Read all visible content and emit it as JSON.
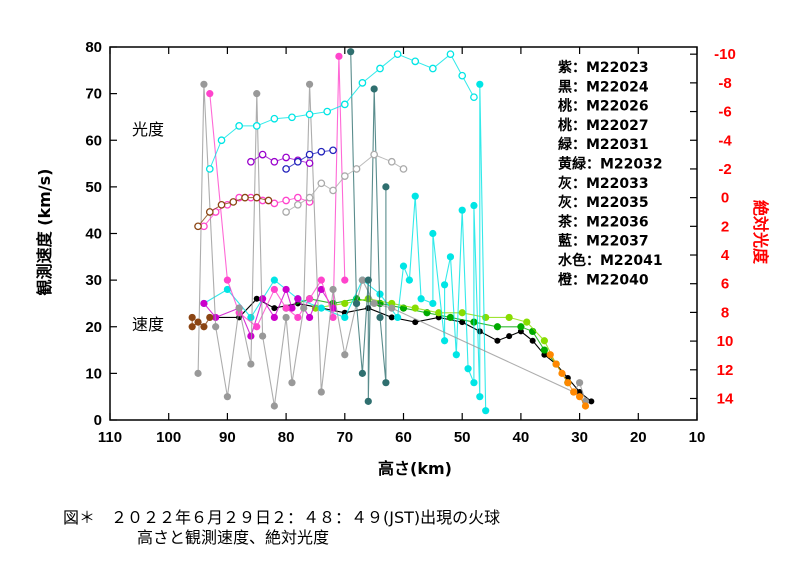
{
  "chart_data": {
    "type": "scatter",
    "xlabel": "高さ(km)",
    "ylabel": "観測速度 (km/s)",
    "y2label": "絶対光度",
    "xlim": [
      110,
      10
    ],
    "ylim": [
      0,
      80
    ],
    "y2lim": [
      15.5,
      -10.5
    ],
    "xticks": [
      "110",
      "100",
      "90",
      "80",
      "70",
      "60",
      "50",
      "40",
      "30",
      "20",
      "10"
    ],
    "yticks": [
      "0",
      "10",
      "20",
      "30",
      "40",
      "50",
      "60",
      "70",
      "80"
    ],
    "y2ticks": [
      "-10",
      "-8",
      "-6",
      "-4",
      "-2",
      "0",
      "2",
      "4",
      "6",
      "8",
      "10",
      "12",
      "14"
    ],
    "annotations": {
      "brightness": "光度",
      "speed": "速度"
    },
    "legend": [
      {
        "label": "紫：M22023",
        "color": "#cc00cc"
      },
      {
        "label": "黒：M22024",
        "color": "#000000"
      },
      {
        "label": "桃：M22026",
        "color": "#ff44cc"
      },
      {
        "label": "桃：M22027",
        "color": "#ff44cc"
      },
      {
        "label": "緑：M22031",
        "color": "#00aa00"
      },
      {
        "label": "黄緑：M22032",
        "color": "#88dd00"
      },
      {
        "label": "灰：M22033",
        "color": "#999999"
      },
      {
        "label": "灰：M22035",
        "color": "#aaaaaa"
      },
      {
        "label": "茶：M22036",
        "color": "#8b4513"
      },
      {
        "label": "藍：M22037",
        "color": "#2f6f6f"
      },
      {
        "label": "水色：M22041",
        "color": "#00e5e5"
      },
      {
        "label": "橙：M22040",
        "color": "#ff8800"
      }
    ],
    "series": [
      {
        "name": "M22024 速度 (黒)",
        "kind": "speed",
        "color": "#000000",
        "points": [
          [
            92,
            22
          ],
          [
            88,
            22
          ],
          [
            85,
            26
          ],
          [
            82,
            24
          ],
          [
            78,
            25
          ],
          [
            74,
            24
          ],
          [
            70,
            23
          ],
          [
            66,
            24
          ],
          [
            62,
            22
          ],
          [
            58,
            21
          ],
          [
            54,
            22
          ],
          [
            50,
            21
          ],
          [
            47,
            19
          ],
          [
            44,
            17
          ],
          [
            42,
            18
          ],
          [
            40,
            19
          ],
          [
            38,
            17
          ],
          [
            36,
            14
          ],
          [
            34,
            12
          ],
          [
            32,
            9
          ],
          [
            30,
            6
          ],
          [
            28,
            4
          ]
        ]
      },
      {
        "name": "M22031 速度 (緑)",
        "kind": "speed",
        "color": "#00aa00",
        "points": [
          [
            80,
            24
          ],
          [
            76,
            26
          ],
          [
            72,
            25
          ],
          [
            68,
            26
          ],
          [
            64,
            25
          ],
          [
            60,
            24
          ],
          [
            56,
            23
          ],
          [
            52,
            22
          ],
          [
            48,
            21
          ],
          [
            44,
            20
          ],
          [
            40,
            20
          ],
          [
            38,
            19
          ],
          [
            36,
            15
          ],
          [
            34,
            12
          ],
          [
            32,
            8
          ]
        ]
      },
      {
        "name": "M22032 速度 (黄緑)",
        "kind": "speed",
        "color": "#88dd00",
        "points": [
          [
            75,
            24
          ],
          [
            70,
            25
          ],
          [
            66,
            26
          ],
          [
            62,
            25
          ],
          [
            58,
            24
          ],
          [
            54,
            23
          ],
          [
            50,
            23
          ],
          [
            46,
            22
          ],
          [
            42,
            22
          ],
          [
            39,
            21
          ],
          [
            36,
            17
          ],
          [
            34,
            12
          ]
        ]
      },
      {
        "name": "M22041 速度 (水色)",
        "kind": "speed",
        "color": "#00e5e5",
        "points": [
          [
            94,
            25
          ],
          [
            90,
            28
          ],
          [
            86,
            22
          ],
          [
            82,
            30
          ],
          [
            78,
            26
          ],
          [
            74,
            24
          ],
          [
            70,
            22
          ],
          [
            67,
            30
          ],
          [
            64,
            27
          ],
          [
            61,
            22
          ],
          [
            59,
            30
          ],
          [
            57,
            26
          ],
          [
            55,
            25
          ],
          [
            53,
            17
          ],
          [
            51,
            14
          ],
          [
            49,
            11
          ],
          [
            48,
            8
          ],
          [
            47,
            5
          ],
          [
            46,
            2
          ],
          [
            58,
            48
          ],
          [
            55,
            40
          ],
          [
            52,
            35
          ],
          [
            50,
            45
          ],
          [
            48,
            46
          ],
          [
            47,
            72
          ],
          [
            53,
            29
          ],
          [
            60,
            33
          ]
        ]
      },
      {
        "name": "M22023 速度 (紫)",
        "kind": "speed",
        "color": "#cc00cc",
        "points": [
          [
            94,
            25
          ],
          [
            92,
            22
          ],
          [
            88,
            24
          ],
          [
            86,
            18
          ],
          [
            84,
            26
          ],
          [
            82,
            22
          ],
          [
            80,
            28
          ],
          [
            79,
            24
          ],
          [
            78,
            26
          ],
          [
            76,
            22
          ],
          [
            74,
            28
          ],
          [
            72,
            24
          ]
        ]
      },
      {
        "name": "M22026/M22027 速度 (桃)",
        "kind": "speed",
        "color": "#ff44cc",
        "points": [
          [
            93,
            70
          ],
          [
            90,
            30
          ],
          [
            88,
            23
          ],
          [
            85,
            20
          ],
          [
            82,
            28
          ],
          [
            80,
            24
          ],
          [
            78,
            22
          ],
          [
            76,
            26
          ],
          [
            74,
            30
          ],
          [
            72,
            22
          ],
          [
            71,
            78
          ],
          [
            70,
            30
          ]
        ]
      },
      {
        "name": "M22033/M22035 速度 (灰)",
        "kind": "speed",
        "color": "#999999",
        "points": [
          [
            95,
            10
          ],
          [
            94,
            72
          ],
          [
            92,
            20
          ],
          [
            90,
            5
          ],
          [
            88,
            24
          ],
          [
            86,
            12
          ],
          [
            85,
            70
          ],
          [
            84,
            18
          ],
          [
            82,
            3
          ],
          [
            80,
            22
          ],
          [
            79,
            8
          ],
          [
            77,
            24
          ],
          [
            76,
            72
          ],
          [
            74,
            6
          ],
          [
            72,
            28
          ],
          [
            70,
            14
          ],
          [
            68,
            25
          ],
          [
            67,
            30
          ],
          [
            65,
            25
          ],
          [
            62,
            24
          ],
          [
            30,
            8
          ],
          [
            29,
            4
          ],
          [
            31,
            6
          ]
        ]
      },
      {
        "name": "M22036 速度 (茶)",
        "kind": "speed",
        "color": "#8b4513",
        "points": [
          [
            96,
            22
          ],
          [
            95,
            21
          ],
          [
            94,
            20
          ],
          [
            93,
            22
          ],
          [
            96,
            20
          ]
        ]
      },
      {
        "name": "M22037 速度 (藍)",
        "kind": "speed",
        "color": "#2f6f6f",
        "points": [
          [
            69,
            79
          ],
          [
            68,
            25
          ],
          [
            67,
            10
          ],
          [
            66,
            30
          ],
          [
            65,
            71
          ],
          [
            64,
            22
          ],
          [
            63,
            8
          ],
          [
            63,
            50
          ],
          [
            66,
            4
          ]
        ]
      },
      {
        "name": "M22040 速度 (橙)",
        "kind": "speed",
        "color": "#ff8800",
        "points": [
          [
            35,
            14
          ],
          [
            34,
            12
          ],
          [
            33,
            10
          ],
          [
            32,
            8
          ],
          [
            31,
            6
          ],
          [
            30,
            5
          ],
          [
            29,
            3
          ]
        ]
      },
      {
        "name": "M22041 光度 (水色)",
        "kind": "mag",
        "color": "#00e5e5",
        "points": [
          [
            93,
            -2
          ],
          [
            91,
            -4
          ],
          [
            88,
            -5
          ],
          [
            85,
            -5
          ],
          [
            82,
            -5.5
          ],
          [
            79,
            -5.6
          ],
          [
            76,
            -5.8
          ],
          [
            73,
            -6
          ],
          [
            70,
            -6.5
          ],
          [
            67,
            -8
          ],
          [
            64,
            -9
          ],
          [
            61,
            -10
          ],
          [
            58,
            -9.5
          ],
          [
            55,
            -9
          ],
          [
            52,
            -10
          ],
          [
            50,
            -8.5
          ],
          [
            48,
            -7
          ]
        ]
      },
      {
        "name": "M22026 光度 (桃)",
        "kind": "mag",
        "color": "#ff44cc",
        "points": [
          [
            94,
            2
          ],
          [
            92,
            1
          ],
          [
            90,
            0.5
          ],
          [
            88,
            0
          ],
          [
            86,
            0
          ],
          [
            84,
            0.2
          ],
          [
            82,
            0.4
          ],
          [
            80,
            0.2
          ],
          [
            78,
            0
          ],
          [
            76,
            0.3
          ]
        ]
      },
      {
        "name": "M22023 光度 (紫)",
        "kind": "mag",
        "color": "#9900cc",
        "points": [
          [
            86,
            -2.5
          ],
          [
            84,
            -3
          ],
          [
            82,
            -2.5
          ],
          [
            80,
            -2.8
          ],
          [
            78,
            -2.6
          ],
          [
            76,
            -2.4
          ]
        ]
      },
      {
        "name": "M22037 光度 (藍)",
        "kind": "mag",
        "color": "#2222bb",
        "points": [
          [
            80,
            -2
          ],
          [
            78,
            -2.5
          ],
          [
            76,
            -3
          ],
          [
            74,
            -3.2
          ],
          [
            72,
            -3.3
          ]
        ]
      },
      {
        "name": "M22036 光度 (茶)",
        "kind": "mag",
        "color": "#8b4513",
        "points": [
          [
            95,
            2
          ],
          [
            93,
            1
          ],
          [
            91,
            0.5
          ],
          [
            89,
            0.3
          ],
          [
            87,
            0
          ],
          [
            85,
            0
          ],
          [
            83,
            0.2
          ]
        ]
      },
      {
        "name": "M22033 光度 (灰)",
        "kind": "mag",
        "color": "#aaaaaa",
        "points": [
          [
            80,
            1
          ],
          [
            78,
            0.5
          ],
          [
            76,
            0
          ],
          [
            74,
            -1
          ],
          [
            72,
            -0.5
          ],
          [
            70,
            -1.5
          ],
          [
            68,
            -2
          ],
          [
            65,
            -3
          ],
          [
            62,
            -2.5
          ],
          [
            60,
            -2
          ]
        ]
      }
    ]
  },
  "caption": {
    "line1": "図＊　２０２２年６月２９日２：４８：４９(JST)出現の火球",
    "line2": "高さと観測速度、絶対光度"
  }
}
